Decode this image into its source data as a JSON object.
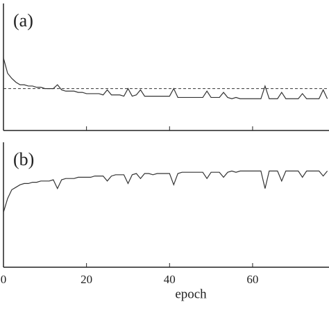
{
  "chart_data": [
    {
      "type": "line",
      "label": "(a)",
      "x": [
        0,
        1,
        2,
        3,
        4,
        5,
        6,
        7,
        8,
        9,
        10,
        11,
        12,
        13,
        14,
        15,
        16,
        17,
        18,
        19,
        20,
        21,
        22,
        23,
        24,
        25,
        26,
        27,
        28,
        29,
        30,
        31,
        32,
        33,
        34,
        35,
        36,
        37,
        38,
        39,
        40,
        41,
        42,
        43,
        44,
        45,
        46,
        47,
        48,
        49,
        50,
        51,
        52,
        53,
        54,
        55,
        56,
        57,
        58,
        59,
        60,
        61,
        62,
        63,
        64,
        65,
        66,
        67,
        68,
        69,
        70,
        71,
        72,
        73,
        74,
        75,
        76,
        77,
        78
      ],
      "series": [
        {
          "color": "#333333",
          "values": [
            0.57,
            0.45,
            0.41,
            0.38,
            0.36,
            0.36,
            0.35,
            0.35,
            0.34,
            0.34,
            0.33,
            0.33,
            0.33,
            0.36,
            0.32,
            0.31,
            0.31,
            0.31,
            0.3,
            0.3,
            0.29,
            0.29,
            0.29,
            0.29,
            0.28,
            0.32,
            0.28,
            0.28,
            0.28,
            0.27,
            0.33,
            0.27,
            0.28,
            0.32,
            0.27,
            0.27,
            0.27,
            0.27,
            0.27,
            0.27,
            0.27,
            0.33,
            0.26,
            0.26,
            0.26,
            0.26,
            0.26,
            0.26,
            0.26,
            0.31,
            0.26,
            0.26,
            0.26,
            0.3,
            0.26,
            0.25,
            0.26,
            0.25,
            0.25,
            0.25,
            0.25,
            0.25,
            0.25,
            0.35,
            0.25,
            0.25,
            0.25,
            0.3,
            0.25,
            0.25,
            0.25,
            0.25,
            0.29,
            0.25,
            0.25,
            0.25,
            0.25,
            0.32,
            0.25
          ]
        }
      ],
      "hline": 0.33,
      "xlim": [
        0,
        78.4
      ],
      "ylim": [
        0,
        1
      ],
      "xticks": [
        0,
        20,
        40,
        60
      ]
    },
    {
      "type": "line",
      "label": "(b)",
      "xlabel": "epoch",
      "x": [
        0,
        1,
        2,
        3,
        4,
        5,
        6,
        7,
        8,
        9,
        10,
        11,
        12,
        13,
        14,
        15,
        16,
        17,
        18,
        19,
        20,
        21,
        22,
        23,
        24,
        25,
        26,
        27,
        28,
        29,
        30,
        31,
        32,
        33,
        34,
        35,
        36,
        37,
        38,
        39,
        40,
        41,
        42,
        43,
        44,
        45,
        46,
        47,
        48,
        49,
        50,
        51,
        52,
        53,
        54,
        55,
        56,
        57,
        58,
        59,
        60,
        61,
        62,
        63,
        64,
        65,
        66,
        67,
        68,
        69,
        70,
        71,
        72,
        73,
        74,
        75,
        76,
        77,
        78
      ],
      "series": [
        {
          "color": "#333333",
          "values": [
            0.44,
            0.55,
            0.62,
            0.64,
            0.66,
            0.67,
            0.67,
            0.68,
            0.68,
            0.69,
            0.69,
            0.69,
            0.7,
            0.63,
            0.7,
            0.71,
            0.71,
            0.71,
            0.72,
            0.72,
            0.72,
            0.72,
            0.73,
            0.73,
            0.73,
            0.69,
            0.73,
            0.74,
            0.74,
            0.74,
            0.67,
            0.74,
            0.75,
            0.71,
            0.75,
            0.75,
            0.74,
            0.75,
            0.75,
            0.75,
            0.75,
            0.66,
            0.75,
            0.76,
            0.76,
            0.76,
            0.76,
            0.76,
            0.76,
            0.71,
            0.76,
            0.76,
            0.76,
            0.72,
            0.76,
            0.77,
            0.76,
            0.77,
            0.77,
            0.77,
            0.77,
            0.77,
            0.77,
            0.63,
            0.77,
            0.77,
            0.77,
            0.69,
            0.77,
            0.77,
            0.77,
            0.77,
            0.72,
            0.77,
            0.77,
            0.77,
            0.77,
            0.73,
            0.77
          ]
        }
      ],
      "xlim": [
        0,
        78.4
      ],
      "ylim": [
        0,
        1
      ],
      "xticks": [
        0,
        20,
        40,
        60
      ]
    }
  ]
}
